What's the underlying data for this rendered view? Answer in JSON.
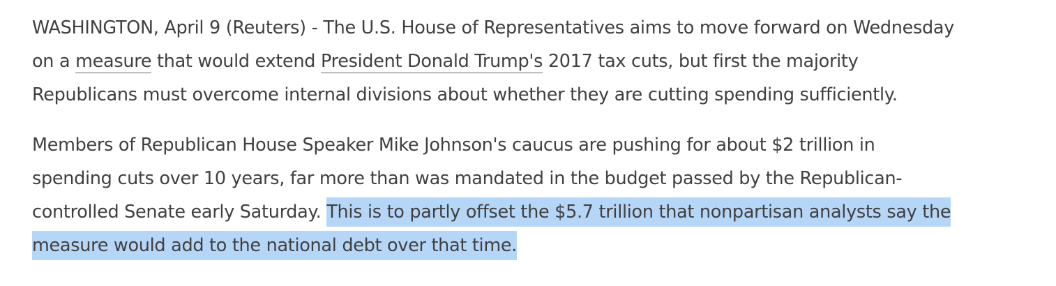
{
  "article": {
    "p1": {
      "line1": "WASHINGTON, April 9 (Reuters) - The U.S. House of Representatives aims to move forward on Wednesday",
      "line2_a": "on a ",
      "link_measure": "measure",
      "line2_b": " that would extend ",
      "link_trump": "President Donald Trump's",
      "line2_c": " 2017 tax cuts, but first the majority",
      "line3": "Republicans must overcome internal divisions about whether they are cutting spending sufficiently."
    },
    "p2": {
      "line1": "Members of Republican House Speaker Mike Johnson's caucus are pushing for about $2 trillion in",
      "line2": "spending cuts over 10 years, far more than was mandated in the budget passed by the Republican-",
      "line3_a": "controlled Senate early Saturday. ",
      "highlight_a": "This is to partly offset the $5.7 trillion that nonpartisan analysts say the",
      "highlight_b": "measure would add to the national debt over that time."
    },
    "colors": {
      "text": "#404040",
      "highlight": "#b6d6f8"
    }
  }
}
